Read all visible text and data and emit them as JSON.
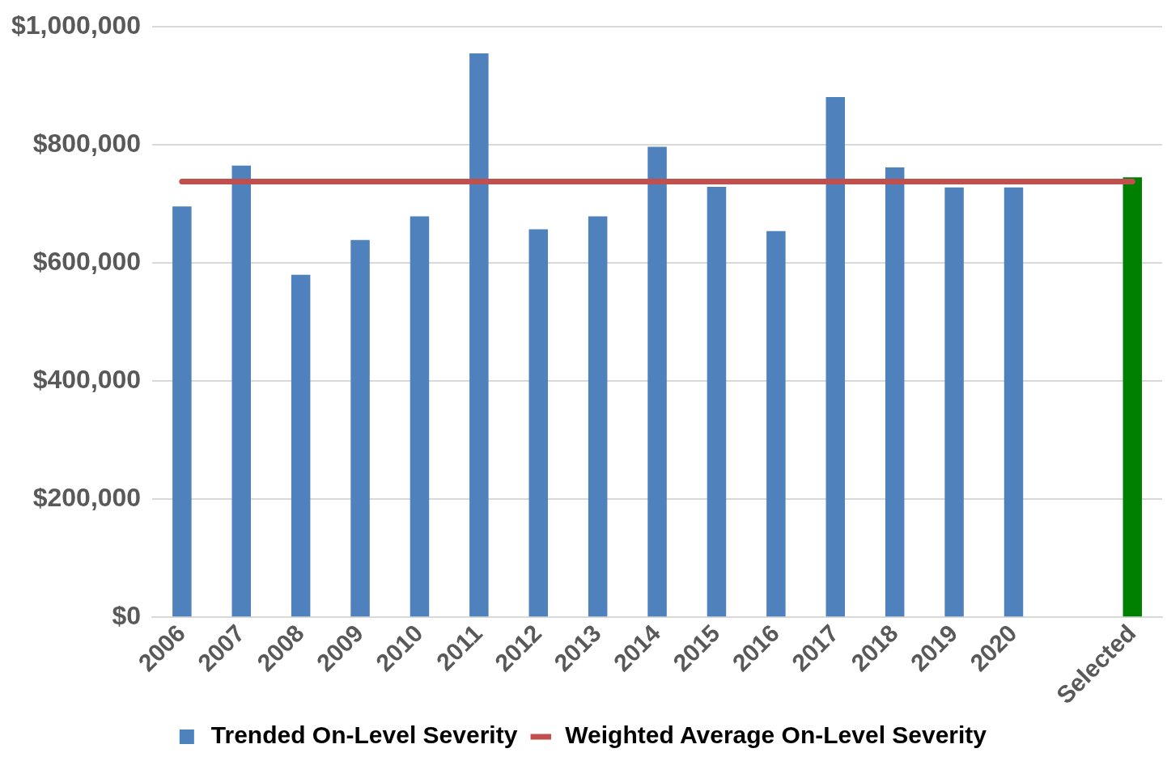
{
  "chart_data": {
    "type": "bar",
    "categories": [
      "2006",
      "2007",
      "2008",
      "2009",
      "2010",
      "2011",
      "2012",
      "2013",
      "2014",
      "2015",
      "2016",
      "2017",
      "2018",
      "2019",
      "2020",
      null,
      "Selected"
    ],
    "series": [
      {
        "name": "Trended On-Level Severity",
        "color": "#4f81bd",
        "colors": [
          "#4f81bd",
          "#4f81bd",
          "#4f81bd",
          "#4f81bd",
          "#4f81bd",
          "#4f81bd",
          "#4f81bd",
          "#4f81bd",
          "#4f81bd",
          "#4f81bd",
          "#4f81bd",
          "#4f81bd",
          "#4f81bd",
          "#4f81bd",
          "#4f81bd",
          "#4f81bd",
          "#008000"
        ],
        "values": [
          696000,
          765000,
          580000,
          639000,
          679000,
          955000,
          657000,
          679000,
          797000,
          729000,
          654000,
          881000,
          762000,
          728000,
          728000,
          null,
          745000
        ]
      },
      {
        "name": "Weighted Average On-Level Severity",
        "type": "line",
        "color": "#c0504d",
        "values": [
          738000,
          738000,
          738000,
          738000,
          738000,
          738000,
          738000,
          738000,
          738000,
          738000,
          738000,
          738000,
          738000,
          738000,
          738000,
          738000,
          738000
        ]
      }
    ],
    "ylim": [
      0,
      1000000
    ],
    "yticks": [
      {
        "value": 0,
        "label": "$0"
      },
      {
        "value": 200000,
        "label": "$200,000"
      },
      {
        "value": 400000,
        "label": "$400,000"
      },
      {
        "value": 600000,
        "label": "$600,000"
      },
      {
        "value": 800000,
        "label": "$800,000"
      },
      {
        "value": 1000000,
        "label": "$1,000,000"
      }
    ],
    "grid": "y",
    "legend": "bottom",
    "marker": "none",
    "line_style": "solid"
  }
}
